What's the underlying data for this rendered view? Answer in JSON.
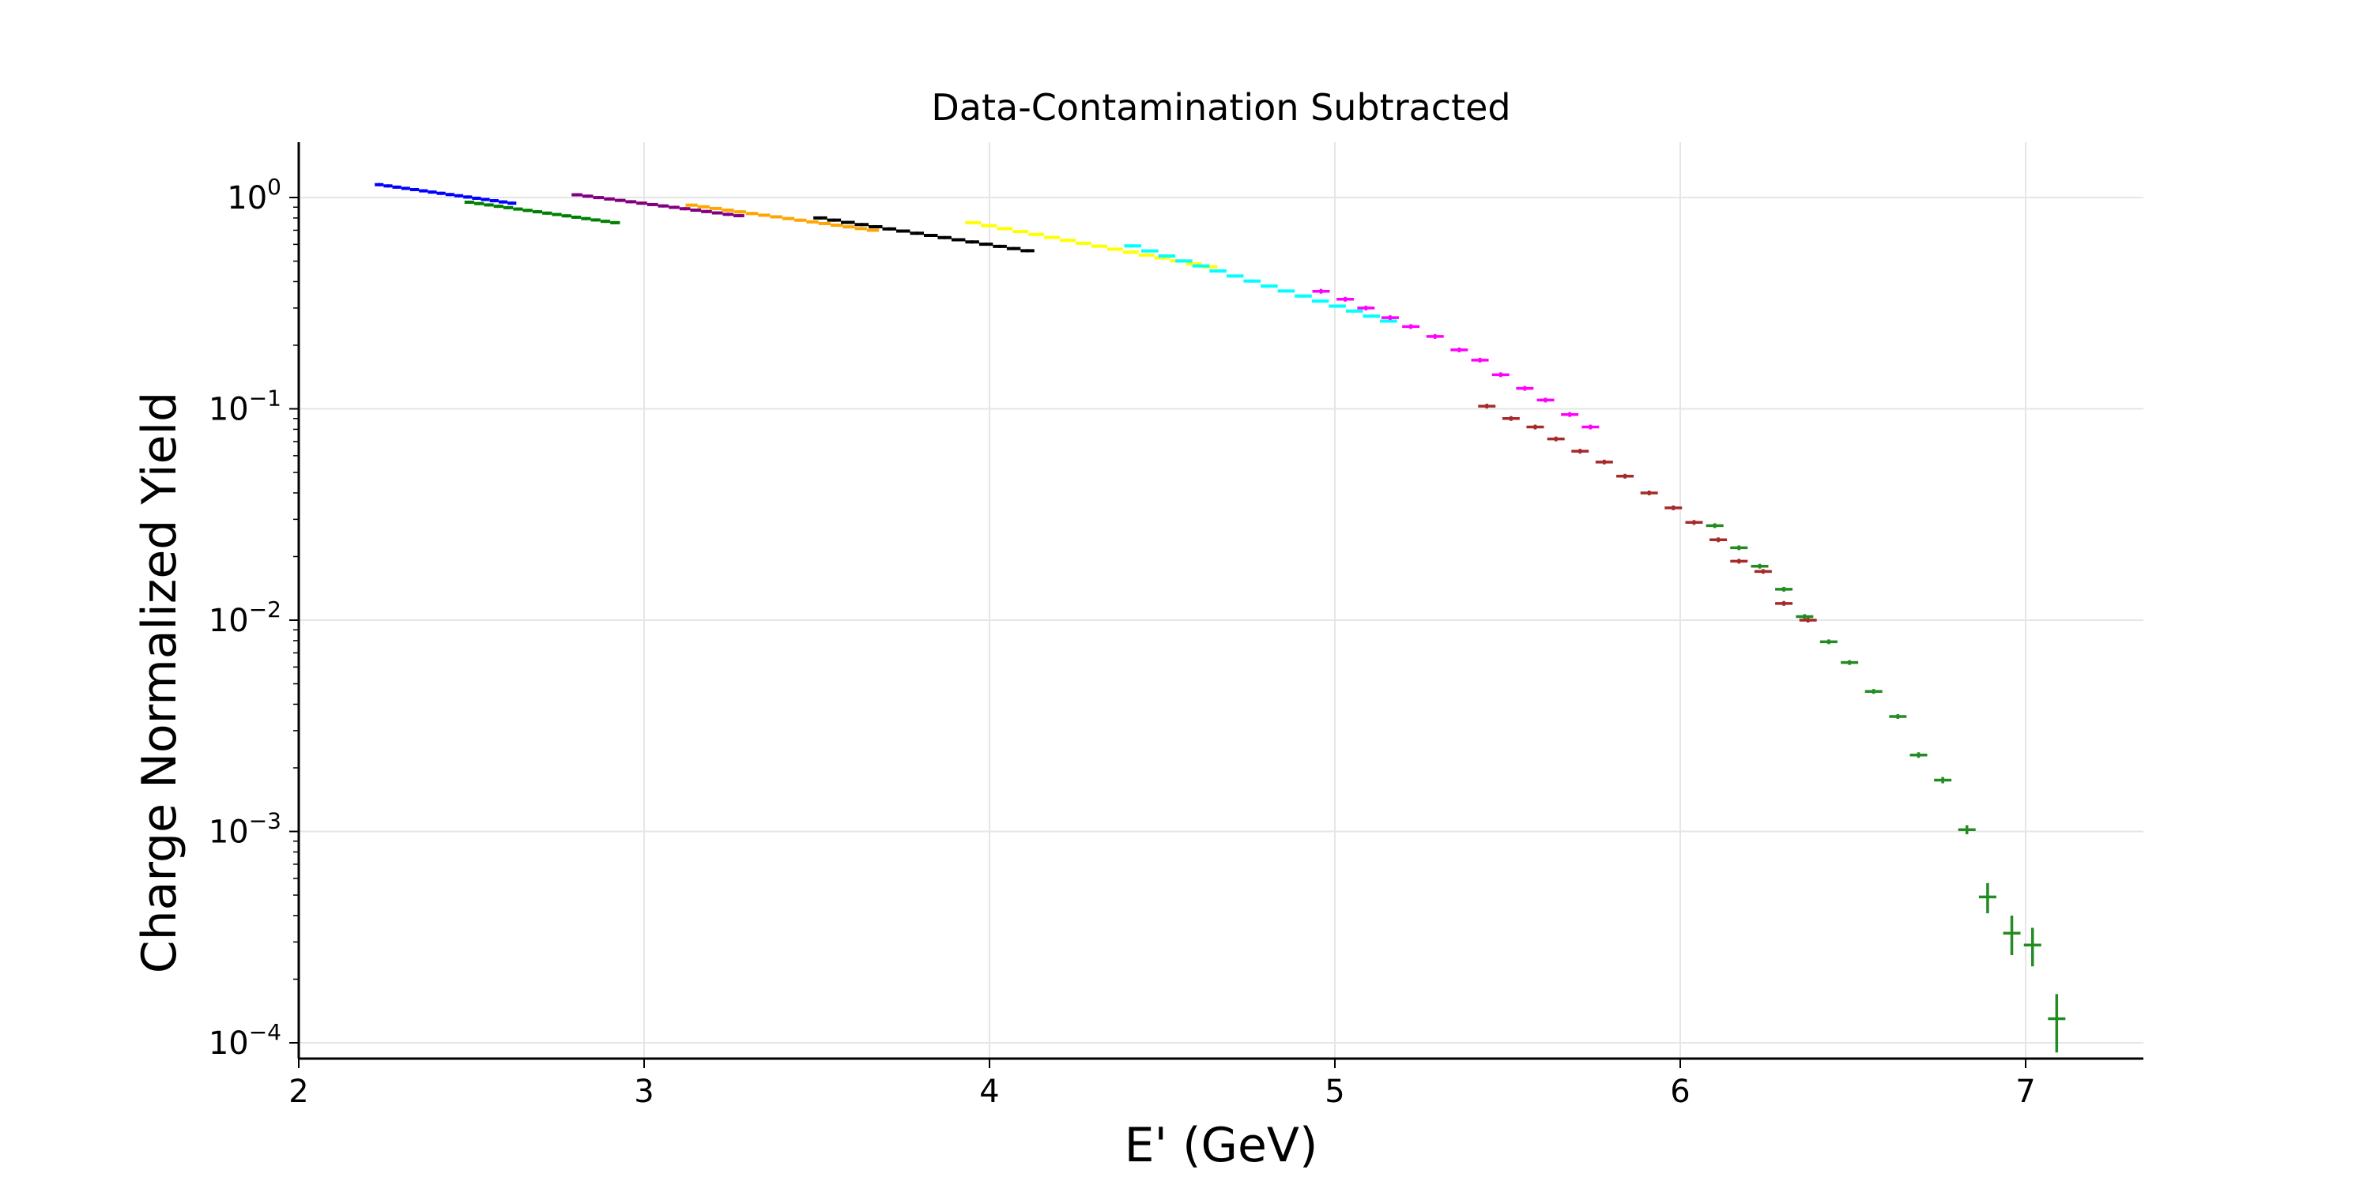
{
  "chart_data": {
    "type": "scatter",
    "title": "Data-Contamination Subtracted",
    "xlabel": "E' (GeV)",
    "ylabel": "Charge Normalized Yield",
    "xlim": [
      2.0,
      7.34
    ],
    "ylim": [
      8e-05,
      1.9
    ],
    "yscale": "log",
    "grid": true,
    "x_ticks": [
      2,
      3,
      4,
      5,
      6,
      7
    ],
    "y_ticks": [
      {
        "value": 1,
        "base": "10",
        "exp": "0"
      },
      {
        "value": 0.1,
        "base": "10",
        "exp": "−1"
      },
      {
        "value": 0.01,
        "base": "10",
        "exp": "−2"
      },
      {
        "value": 0.001,
        "base": "10",
        "exp": "−3"
      },
      {
        "value": 0.0001,
        "base": "10",
        "exp": "−4"
      }
    ],
    "series": [
      {
        "color": "#0000ff",
        "style": "step",
        "x_start": 2.22,
        "x_end": 2.63,
        "y_start": 1.15,
        "y_end": 0.94,
        "n": 16
      },
      {
        "color": "#008000",
        "style": "step",
        "x_start": 2.48,
        "x_end": 2.93,
        "y_start": 0.95,
        "y_end": 0.76,
        "n": 16
      },
      {
        "color": "#800080",
        "style": "step",
        "x_start": 2.79,
        "x_end": 3.29,
        "y_start": 1.03,
        "y_end": 0.82,
        "n": 16
      },
      {
        "color": "#ffa500",
        "style": "step",
        "x_start": 3.12,
        "x_end": 3.68,
        "y_start": 0.92,
        "y_end": 0.7,
        "n": 16
      },
      {
        "color": "#000000",
        "style": "step",
        "x_start": 3.49,
        "x_end": 4.13,
        "y_start": 0.8,
        "y_end": 0.56,
        "n": 16
      },
      {
        "color": "#ffff00",
        "style": "step",
        "x_start": 3.93,
        "x_end": 4.66,
        "y_start": 0.76,
        "y_end": 0.47,
        "n": 16
      },
      {
        "color": "#00ffff",
        "style": "step",
        "x_start": 4.39,
        "x_end": 5.18,
        "y_start": 0.59,
        "y_end": 0.26,
        "n": 16
      },
      {
        "color": "#ff00ff",
        "style": "bins",
        "x": [
          4.96,
          5.03,
          5.09,
          5.16,
          5.22,
          5.29,
          5.36,
          5.42,
          5.48,
          5.55,
          5.61,
          5.68,
          5.74
        ],
        "y": [
          0.36,
          0.33,
          0.3,
          0.27,
          0.245,
          0.22,
          0.19,
          0.17,
          0.145,
          0.125,
          0.11,
          0.094,
          0.082
        ]
      },
      {
        "color": "#a52a2a",
        "style": "bins",
        "x": [
          5.44,
          5.51,
          5.58,
          5.64,
          5.71,
          5.78,
          5.84,
          5.91,
          5.98,
          6.04,
          6.11,
          6.17,
          6.24,
          6.3,
          6.37
        ],
        "y": [
          0.103,
          0.09,
          0.082,
          0.072,
          0.063,
          0.056,
          0.048,
          0.04,
          0.034,
          0.029,
          0.024,
          0.019,
          0.017,
          0.012,
          0.01
        ]
      },
      {
        "color": "#228b22",
        "style": "bins",
        "x": [
          6.1,
          6.17,
          6.23,
          6.3,
          6.36,
          6.43,
          6.49,
          6.56,
          6.63,
          6.69,
          6.76,
          6.83,
          6.89,
          6.96,
          7.02,
          7.09
        ],
        "y": [
          0.028,
          0.022,
          0.018,
          0.014,
          0.0104,
          0.0079,
          0.0063,
          0.0046,
          0.0035,
          0.0023,
          0.00175,
          0.00102,
          0.00049,
          0.00033,
          0.00029,
          0.00013
        ],
        "yerr": [
          0.0005,
          0.0004,
          0.0003,
          0.0003,
          0.0002,
          0.00015,
          0.00012,
          0.0001,
          8e-05,
          7e-05,
          6e-05,
          5e-05,
          8e-05,
          7e-05,
          6e-05,
          4e-05
        ]
      }
    ]
  }
}
